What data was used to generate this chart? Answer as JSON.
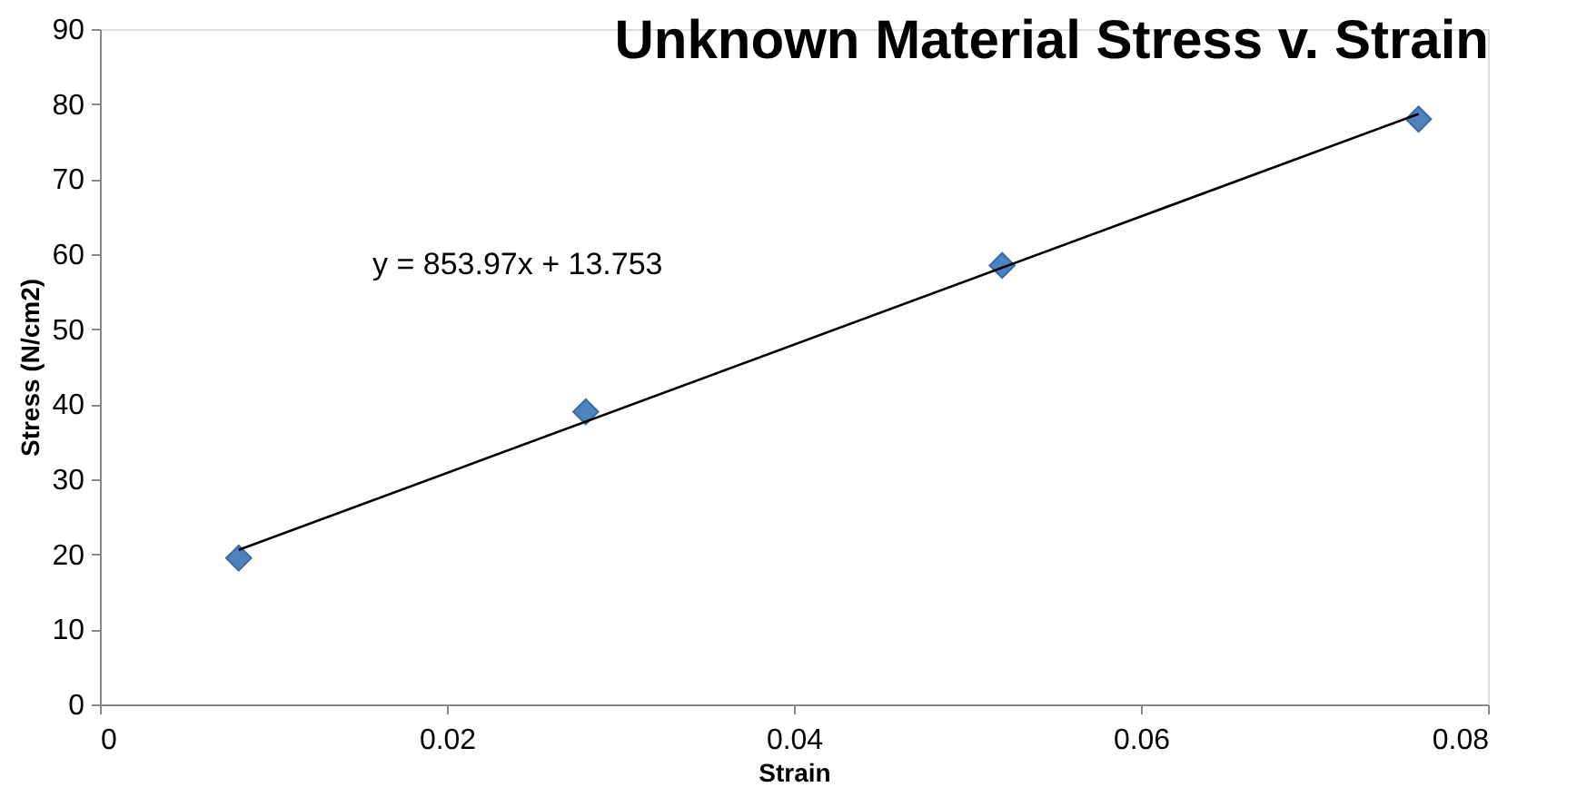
{
  "chart_data": {
    "type": "scatter",
    "title": "Unknown Material Stress v. Strain",
    "xlabel": "Strain",
    "ylabel": "Stress (N/cm2)",
    "x": [
      0.008,
      0.028,
      0.052,
      0.076
    ],
    "series": [
      {
        "color": "#4f81bd",
        "marker": "diamond",
        "values": [
          19.5,
          39,
          58.5,
          78
        ]
      },
      {
        "type": "line",
        "color": "#000000",
        "marker": "none",
        "x": [
          0.008,
          0.076
        ],
        "values": [
          20.6,
          78.7
        ]
      }
    ],
    "annotations": [
      "y = 853.97x + 13.753"
    ],
    "xlim": [
      0,
      0.08
    ],
    "xticks": [
      0,
      0.02,
      0.04,
      0.06,
      0.08
    ],
    "ylim": [
      0,
      90
    ],
    "yticks": [
      0,
      10,
      20,
      30,
      40,
      50,
      60,
      70,
      80,
      90
    ],
    "grid": false
  }
}
